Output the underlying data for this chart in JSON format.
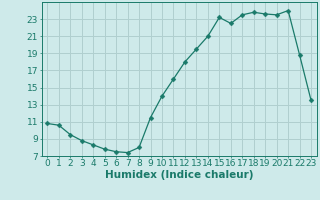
{
  "x": [
    0,
    1,
    2,
    3,
    4,
    5,
    6,
    7,
    8,
    9,
    10,
    11,
    12,
    13,
    14,
    15,
    16,
    17,
    18,
    19,
    20,
    21,
    22,
    23
  ],
  "y": [
    10.8,
    10.6,
    9.5,
    8.8,
    8.3,
    7.8,
    7.5,
    7.4,
    8.0,
    11.5,
    14.0,
    16.0,
    18.0,
    19.5,
    21.0,
    23.2,
    22.5,
    23.5,
    23.8,
    23.6,
    23.5,
    24.0,
    18.8,
    13.5
  ],
  "line_color": "#1a7a6a",
  "marker": "D",
  "marker_size": 2.5,
  "bg_color": "#ceeaea",
  "grid_color": "#b0cfcf",
  "xlabel": "Humidex (Indice chaleur)",
  "xlim": [
    -0.5,
    23.5
  ],
  "ylim": [
    7,
    25
  ],
  "yticks": [
    7,
    9,
    11,
    13,
    15,
    17,
    19,
    21,
    23
  ],
  "xticks": [
    0,
    1,
    2,
    3,
    4,
    5,
    6,
    7,
    8,
    9,
    10,
    11,
    12,
    13,
    14,
    15,
    16,
    17,
    18,
    19,
    20,
    21,
    22,
    23
  ],
  "tick_color": "#1a7a6a",
  "xlabel_color": "#1a7a6a",
  "axis_color": "#1a7a6a",
  "font_size": 6.5
}
